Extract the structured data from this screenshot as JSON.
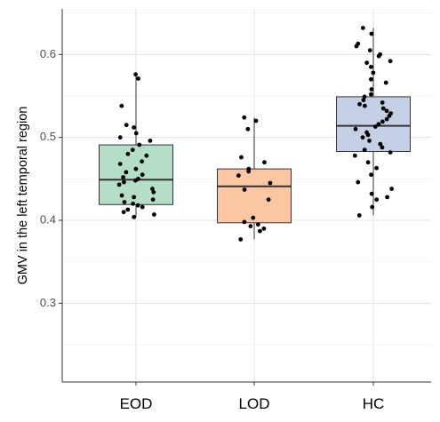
{
  "chart_data": {
    "type": "box",
    "ylabel": "GMV in the left temporal region",
    "xlabel": "",
    "ylim": [
      0.205,
      0.655
    ],
    "yticks": [
      0.3,
      0.4,
      0.5,
      0.6
    ],
    "grid": true,
    "categories": [
      "EOD",
      "LOD",
      "HC"
    ],
    "boxes": [
      {
        "name": "EOD",
        "color": "#b4dec6",
        "q1": 0.419,
        "median": 0.449,
        "q3": 0.491,
        "whisker_low": 0.404,
        "whisker_high": 0.576,
        "points": [
          0.576,
          0.571,
          0.538,
          0.515,
          0.512,
          0.505,
          0.5,
          0.496,
          0.491,
          0.485,
          0.48,
          0.478,
          0.471,
          0.468,
          0.462,
          0.458,
          0.455,
          0.452,
          0.45,
          0.448,
          0.446,
          0.443,
          0.438,
          0.434,
          0.43,
          0.428,
          0.425,
          0.422,
          0.42,
          0.418,
          0.416,
          0.413,
          0.41,
          0.407,
          0.404
        ]
      },
      {
        "name": "LOD",
        "color": "#fbc6a3",
        "q1": 0.397,
        "median": 0.441,
        "q3": 0.462,
        "whisker_low": 0.377,
        "whisker_high": 0.524,
        "points": [
          0.524,
          0.52,
          0.51,
          0.476,
          0.47,
          0.462,
          0.459,
          0.454,
          0.445,
          0.437,
          0.425,
          0.403,
          0.398,
          0.395,
          0.393,
          0.39,
          0.387,
          0.377
        ]
      },
      {
        "name": "HC",
        "color": "#c5d0e6",
        "q1": 0.483,
        "median": 0.514,
        "q3": 0.549,
        "whisker_low": 0.406,
        "whisker_high": 0.632,
        "points": [
          0.632,
          0.625,
          0.613,
          0.61,
          0.605,
          0.6,
          0.598,
          0.592,
          0.59,
          0.585,
          0.578,
          0.57,
          0.566,
          0.558,
          0.552,
          0.549,
          0.545,
          0.542,
          0.54,
          0.538,
          0.535,
          0.532,
          0.529,
          0.526,
          0.522,
          0.519,
          0.516,
          0.513,
          0.51,
          0.506,
          0.503,
          0.5,
          0.496,
          0.492,
          0.488,
          0.485,
          0.482,
          0.478,
          0.47,
          0.463,
          0.455,
          0.446,
          0.438,
          0.432,
          0.428,
          0.425,
          0.416,
          0.406
        ]
      }
    ]
  }
}
